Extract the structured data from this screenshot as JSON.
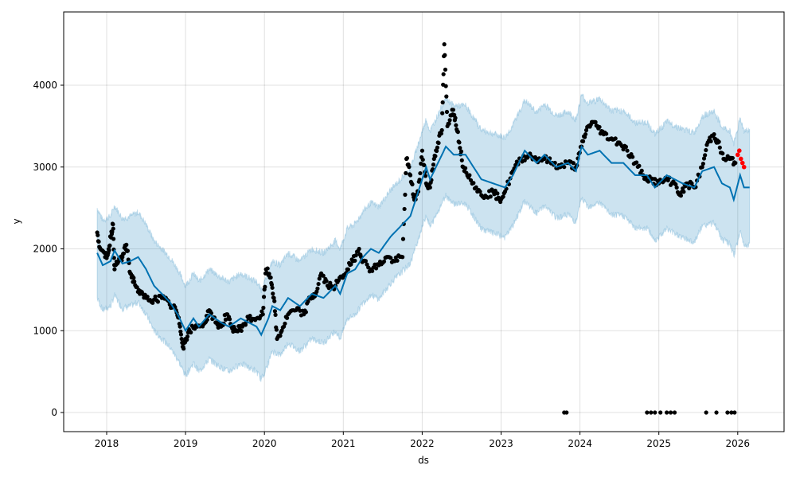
{
  "chart_data": {
    "type": "line",
    "title": "",
    "xlabel": "ds",
    "ylabel": "y",
    "xlim": [
      2017.45,
      2026.58
    ],
    "ylim": [
      -240,
      4840
    ],
    "grid": true,
    "xticks": [
      "2018",
      "2019",
      "2020",
      "2021",
      "2022",
      "2023",
      "2024",
      "2025",
      "2026"
    ],
    "xtick_values": [
      2018,
      2019,
      2020,
      2021,
      2022,
      2023,
      2024,
      2025,
      2026
    ],
    "yticks": [
      "0",
      "1000",
      "2000",
      "3000",
      "4000"
    ],
    "ytick_values": [
      0,
      1000,
      2000,
      3000,
      4000
    ],
    "colors": {
      "yhat": "#0072B2",
      "band": "#0072B2",
      "actual": "#000000",
      "test": "#ff0000"
    },
    "series": [
      {
        "name": "yhat",
        "points": [
          [
            2017.88,
            1950
          ],
          [
            2017.95,
            1800
          ],
          [
            2018.05,
            1850
          ],
          [
            2018.1,
            1980
          ],
          [
            2018.2,
            1820
          ],
          [
            2018.3,
            1850
          ],
          [
            2018.4,
            1900
          ],
          [
            2018.5,
            1750
          ],
          [
            2018.6,
            1550
          ],
          [
            2018.7,
            1450
          ],
          [
            2018.8,
            1350
          ],
          [
            2018.9,
            1200
          ],
          [
            2019.0,
            1000
          ],
          [
            2019.1,
            1150
          ],
          [
            2019.17,
            1050
          ],
          [
            2019.3,
            1200
          ],
          [
            2019.45,
            1100
          ],
          [
            2019.55,
            1050
          ],
          [
            2019.7,
            1150
          ],
          [
            2019.8,
            1100
          ],
          [
            2019.9,
            1050
          ],
          [
            2019.96,
            950
          ],
          [
            2020.05,
            1150
          ],
          [
            2020.1,
            1300
          ],
          [
            2020.2,
            1250
          ],
          [
            2020.3,
            1400
          ],
          [
            2020.45,
            1300
          ],
          [
            2020.6,
            1450
          ],
          [
            2020.75,
            1400
          ],
          [
            2020.9,
            1550
          ],
          [
            2020.96,
            1450
          ],
          [
            2021.05,
            1700
          ],
          [
            2021.15,
            1750
          ],
          [
            2021.25,
            1900
          ],
          [
            2021.35,
            2000
          ],
          [
            2021.45,
            1950
          ],
          [
            2021.6,
            2150
          ],
          [
            2021.75,
            2300
          ],
          [
            2021.85,
            2400
          ],
          [
            2021.95,
            2700
          ],
          [
            2022.05,
            3000
          ],
          [
            2022.1,
            2850
          ],
          [
            2022.2,
            3050
          ],
          [
            2022.3,
            3250
          ],
          [
            2022.4,
            3150
          ],
          [
            2022.55,
            3150
          ],
          [
            2022.65,
            3000
          ],
          [
            2022.75,
            2850
          ],
          [
            2022.9,
            2800
          ],
          [
            2023.05,
            2750
          ],
          [
            2023.15,
            2900
          ],
          [
            2023.3,
            3200
          ],
          [
            2023.45,
            3050
          ],
          [
            2023.55,
            3150
          ],
          [
            2023.7,
            3000
          ],
          [
            2023.85,
            3050
          ],
          [
            2023.95,
            2950
          ],
          [
            2024.02,
            3250
          ],
          [
            2024.1,
            3150
          ],
          [
            2024.25,
            3200
          ],
          [
            2024.4,
            3050
          ],
          [
            2024.55,
            3050
          ],
          [
            2024.7,
            2900
          ],
          [
            2024.85,
            2900
          ],
          [
            2024.95,
            2750
          ],
          [
            2025.1,
            2900
          ],
          [
            2025.2,
            2850
          ],
          [
            2025.3,
            2800
          ],
          [
            2025.45,
            2750
          ],
          [
            2025.55,
            2950
          ],
          [
            2025.7,
            3000
          ],
          [
            2025.8,
            2800
          ],
          [
            2025.9,
            2750
          ],
          [
            2025.95,
            2600
          ],
          [
            2026.03,
            2900
          ],
          [
            2026.08,
            2750
          ],
          [
            2026.15,
            2750
          ]
        ]
      },
      {
        "name": "uncertainty_halfwidth",
        "points": [
          [
            2017.88,
            550
          ],
          [
            2021.0,
            550
          ],
          [
            2022.5,
            600
          ],
          [
            2025.0,
            650
          ],
          [
            2026.15,
            700
          ]
        ]
      },
      {
        "name": "actual",
        "points": [
          [
            2017.88,
            2200
          ],
          [
            2017.92,
            2000
          ],
          [
            2017.98,
            1900
          ],
          [
            2018.02,
            1950
          ],
          [
            2018.05,
            2150
          ],
          [
            2018.08,
            2300
          ],
          [
            2018.1,
            1750
          ],
          [
            2018.15,
            1850
          ],
          [
            2018.2,
            1900
          ],
          [
            2018.25,
            2050
          ],
          [
            2018.3,
            1700
          ],
          [
            2018.35,
            1600
          ],
          [
            2018.42,
            1450
          ],
          [
            2018.5,
            1400
          ],
          [
            2018.6,
            1380
          ],
          [
            2018.7,
            1400
          ],
          [
            2018.8,
            1320
          ],
          [
            2018.88,
            1250
          ],
          [
            2018.93,
            1050
          ],
          [
            2018.97,
            800
          ],
          [
            2019.0,
            900
          ],
          [
            2019.05,
            1000
          ],
          [
            2019.15,
            1050
          ],
          [
            2019.25,
            1100
          ],
          [
            2019.3,
            1250
          ],
          [
            2019.38,
            1100
          ],
          [
            2019.45,
            1050
          ],
          [
            2019.52,
            1200
          ],
          [
            2019.58,
            1050
          ],
          [
            2019.65,
            1000
          ],
          [
            2019.72,
            1050
          ],
          [
            2019.8,
            1150
          ],
          [
            2019.9,
            1150
          ],
          [
            2019.98,
            1200
          ],
          [
            2020.02,
            1750
          ],
          [
            2020.08,
            1650
          ],
          [
            2020.12,
            1400
          ],
          [
            2020.16,
            900
          ],
          [
            2020.22,
            1000
          ],
          [
            2020.3,
            1200
          ],
          [
            2020.4,
            1250
          ],
          [
            2020.5,
            1200
          ],
          [
            2020.58,
            1400
          ],
          [
            2020.65,
            1450
          ],
          [
            2020.72,
            1700
          ],
          [
            2020.8,
            1550
          ],
          [
            2020.9,
            1550
          ],
          [
            2020.98,
            1650
          ],
          [
            2021.05,
            1750
          ],
          [
            2021.12,
            1850
          ],
          [
            2021.2,
            2000
          ],
          [
            2021.25,
            1850
          ],
          [
            2021.35,
            1750
          ],
          [
            2021.45,
            1800
          ],
          [
            2021.55,
            1900
          ],
          [
            2021.65,
            1850
          ],
          [
            2021.75,
            1900
          ],
          [
            2021.8,
            3100
          ],
          [
            2021.85,
            2900
          ],
          [
            2021.9,
            2600
          ],
          [
            2021.95,
            2700
          ],
          [
            2022.0,
            3200
          ],
          [
            2022.05,
            2800
          ],
          [
            2022.1,
            2750
          ],
          [
            2022.15,
            3100
          ],
          [
            2022.2,
            3300
          ],
          [
            2022.25,
            3450
          ],
          [
            2022.28,
            4500
          ],
          [
            2022.32,
            3500
          ],
          [
            2022.38,
            3700
          ],
          [
            2022.42,
            3600
          ],
          [
            2022.47,
            3300
          ],
          [
            2022.52,
            3000
          ],
          [
            2022.6,
            2900
          ],
          [
            2022.7,
            2700
          ],
          [
            2022.8,
            2650
          ],
          [
            2022.9,
            2700
          ],
          [
            2022.98,
            2600
          ],
          [
            2023.05,
            2700
          ],
          [
            2023.15,
            2950
          ],
          [
            2023.25,
            3100
          ],
          [
            2023.35,
            3150
          ],
          [
            2023.45,
            3100
          ],
          [
            2023.55,
            3100
          ],
          [
            2023.65,
            3050
          ],
          [
            2023.75,
            3000
          ],
          [
            2023.85,
            3050
          ],
          [
            2023.95,
            3000
          ],
          [
            2024.02,
            3250
          ],
          [
            2024.08,
            3450
          ],
          [
            2024.15,
            3550
          ],
          [
            2024.22,
            3500
          ],
          [
            2024.3,
            3400
          ],
          [
            2024.4,
            3350
          ],
          [
            2024.5,
            3300
          ],
          [
            2024.6,
            3200
          ],
          [
            2024.7,
            3050
          ],
          [
            2024.8,
            2900
          ],
          [
            2024.9,
            2850
          ],
          [
            2025.0,
            2800
          ],
          [
            2025.1,
            2850
          ],
          [
            2025.2,
            2800
          ],
          [
            2025.28,
            2650
          ],
          [
            2025.35,
            2800
          ],
          [
            2025.45,
            2750
          ],
          [
            2025.55,
            3000
          ],
          [
            2025.62,
            3300
          ],
          [
            2025.7,
            3400
          ],
          [
            2025.75,
            3300
          ],
          [
            2025.82,
            3100
          ],
          [
            2025.9,
            3100
          ],
          [
            2025.97,
            3050
          ],
          [
            2023.8,
            0
          ],
          [
            2023.83,
            0
          ],
          [
            2024.85,
            0
          ],
          [
            2024.9,
            0
          ],
          [
            2024.95,
            0
          ],
          [
            2025.02,
            0
          ],
          [
            2025.1,
            0
          ],
          [
            2025.15,
            0
          ],
          [
            2025.2,
            0
          ],
          [
            2025.6,
            0
          ],
          [
            2025.73,
            0
          ],
          [
            2025.87,
            0
          ],
          [
            2025.92,
            0
          ],
          [
            2025.96,
            0
          ]
        ]
      },
      {
        "name": "test",
        "points": [
          [
            2026.0,
            3150
          ],
          [
            2026.02,
            3200
          ],
          [
            2026.04,
            3100
          ],
          [
            2026.06,
            3050
          ],
          [
            2026.08,
            3000
          ]
        ]
      }
    ]
  }
}
